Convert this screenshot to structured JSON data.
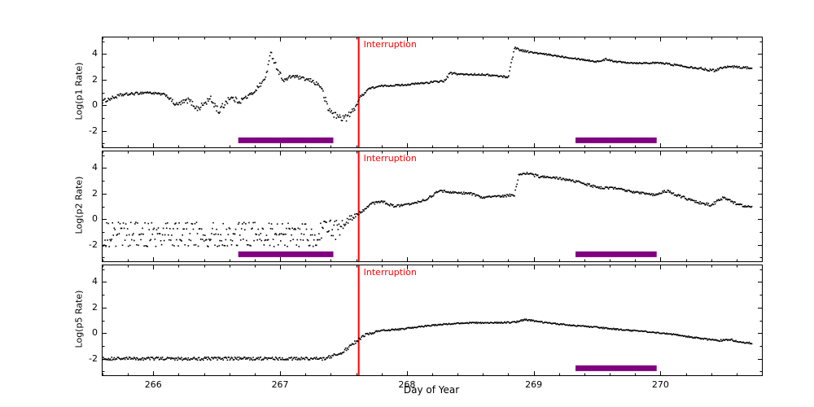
{
  "xlabel": "Day of Year",
  "colors": {
    "marker": "#000000",
    "interruption_line": "#ff0000",
    "activity_bar": "#800080",
    "axis": "#000000"
  },
  "chart_data": [
    {
      "type": "scatter",
      "ylabel": "Log(p1 Rate)",
      "xlim": [
        265.6,
        270.8
      ],
      "ylim": [
        -3.3,
        5.3
      ],
      "xticks": [
        266,
        267,
        268,
        269,
        270
      ],
      "yticks": [
        -2,
        0,
        2,
        4
      ],
      "marker_color": "#000000",
      "interruption": {
        "x": 267.62,
        "label": "Interruption",
        "color": "#ff0000"
      },
      "bars": {
        "color": "#800080",
        "y": -2.75,
        "spans": [
          [
            266.67,
            267.42
          ],
          [
            269.33,
            269.97
          ]
        ]
      },
      "keypoints": {
        "x": [
          265.6,
          265.75,
          265.95,
          266.1,
          266.18,
          266.28,
          266.35,
          266.45,
          266.52,
          266.6,
          266.68,
          266.78,
          266.88,
          266.93,
          266.98,
          267.03,
          267.1,
          267.17,
          267.25,
          267.32,
          267.38,
          267.45,
          267.52,
          267.58,
          267.63,
          267.7,
          267.8,
          268.0,
          268.2,
          268.3,
          268.34,
          268.45,
          268.6,
          268.8,
          268.85,
          268.9,
          269.0,
          269.15,
          269.3,
          269.5,
          269.58,
          269.65,
          269.8,
          270.0,
          270.15,
          270.3,
          270.42,
          270.5,
          270.58,
          270.72
        ],
        "y": [
          0.3,
          0.8,
          1.0,
          0.8,
          0.0,
          0.4,
          -0.3,
          0.5,
          -0.5,
          0.6,
          0.3,
          0.9,
          2.0,
          4.1,
          2.8,
          1.9,
          2.3,
          2.1,
          1.9,
          1.5,
          -0.3,
          -0.9,
          -1.0,
          -0.4,
          0.6,
          1.3,
          1.5,
          1.6,
          1.8,
          1.9,
          2.5,
          2.4,
          2.4,
          2.2,
          4.5,
          4.3,
          4.1,
          3.9,
          3.7,
          3.4,
          3.6,
          3.4,
          3.3,
          3.3,
          3.1,
          2.9,
          2.7,
          3.0,
          3.0,
          2.9
        ],
        "noise": [
          0.15,
          0.12,
          0.08,
          0.1,
          0.18,
          0.2,
          0.22,
          0.25,
          0.3,
          0.25,
          0.2,
          0.15,
          0.2,
          0.25,
          0.2,
          0.15,
          0.15,
          0.12,
          0.15,
          0.2,
          0.35,
          0.3,
          0.28,
          0.2,
          0.1,
          0.08,
          0.06,
          0.06,
          0.08,
          0.08,
          0.1,
          0.06,
          0.06,
          0.08,
          0.12,
          0.08,
          0.06,
          0.06,
          0.06,
          0.06,
          0.08,
          0.06,
          0.06,
          0.06,
          0.08,
          0.08,
          0.1,
          0.08,
          0.08,
          0.08
        ]
      }
    },
    {
      "type": "scatter",
      "ylabel": "Log(p2 Rate)",
      "xlim": [
        265.6,
        270.8
      ],
      "ylim": [
        -3.3,
        5.3
      ],
      "xticks": [
        266,
        267,
        268,
        269,
        270
      ],
      "yticks": [
        -2,
        0,
        2,
        4
      ],
      "marker_color": "#000000",
      "interruption": {
        "x": 267.62,
        "label": "Interruption",
        "color": "#ff0000"
      },
      "bars": {
        "color": "#800080",
        "y": -2.75,
        "spans": [
          [
            266.67,
            267.42
          ],
          [
            269.33,
            269.97
          ]
        ]
      },
      "keypoints": {
        "x": [
          265.6,
          266.5,
          267.3,
          267.45,
          267.55,
          267.63,
          267.72,
          267.8,
          267.9,
          268.0,
          268.15,
          268.25,
          268.35,
          268.5,
          268.6,
          268.75,
          268.85,
          268.88,
          268.95,
          269.05,
          269.2,
          269.35,
          269.5,
          269.65,
          269.8,
          269.95,
          270.05,
          270.15,
          270.3,
          270.4,
          270.5,
          270.6,
          270.72
        ],
        "y": [
          -1.2,
          -1.2,
          -1.2,
          -0.8,
          0.0,
          0.5,
          1.2,
          1.4,
          1.0,
          1.1,
          1.5,
          2.2,
          2.1,
          2.0,
          1.7,
          1.8,
          1.9,
          3.3,
          3.6,
          3.3,
          3.2,
          2.9,
          2.5,
          2.4,
          2.1,
          1.9,
          2.2,
          1.8,
          1.3,
          1.1,
          1.7,
          1.2,
          0.9
        ],
        "noise": [
          0.55,
          0.55,
          0.55,
          0.45,
          0.25,
          0.15,
          0.1,
          0.08,
          0.1,
          0.08,
          0.1,
          0.1,
          0.08,
          0.08,
          0.08,
          0.08,
          0.1,
          0.2,
          0.12,
          0.1,
          0.08,
          0.1,
          0.1,
          0.08,
          0.08,
          0.1,
          0.1,
          0.1,
          0.1,
          0.1,
          0.12,
          0.1,
          0.1
        ]
      }
    },
    {
      "type": "scatter",
      "ylabel": "Log(p5 Rate)",
      "xlim": [
        265.6,
        270.8
      ],
      "ylim": [
        -3.3,
        5.3
      ],
      "xticks": [
        266,
        267,
        268,
        269,
        270
      ],
      "yticks": [
        -2,
        0,
        2,
        4
      ],
      "marker_color": "#000000",
      "interruption": {
        "x": 267.62,
        "label": "Interruption",
        "color": "#ff0000"
      },
      "bars": {
        "color": "#800080",
        "y": -2.75,
        "spans": [
          [
            269.33,
            269.97
          ]
        ]
      },
      "keypoints": {
        "x": [
          265.6,
          266.5,
          267.35,
          267.48,
          267.58,
          267.68,
          267.8,
          267.95,
          268.1,
          268.3,
          268.5,
          268.7,
          268.85,
          268.93,
          268.98,
          269.1,
          269.3,
          269.5,
          269.7,
          269.9,
          270.1,
          270.3,
          270.45,
          270.55,
          270.65,
          270.72
        ],
        "y": [
          -2.0,
          -2.0,
          -2.0,
          -1.6,
          -0.8,
          -0.1,
          0.2,
          0.3,
          0.5,
          0.7,
          0.8,
          0.8,
          0.85,
          1.05,
          1.0,
          0.8,
          0.6,
          0.45,
          0.25,
          0.1,
          -0.1,
          -0.4,
          -0.6,
          -0.5,
          -0.75,
          -0.8
        ],
        "noise": [
          0.12,
          0.12,
          0.12,
          0.15,
          0.12,
          0.1,
          0.07,
          0.06,
          0.06,
          0.05,
          0.05,
          0.05,
          0.06,
          0.07,
          0.06,
          0.05,
          0.05,
          0.05,
          0.05,
          0.05,
          0.05,
          0.05,
          0.07,
          0.07,
          0.07,
          0.07
        ]
      }
    }
  ]
}
